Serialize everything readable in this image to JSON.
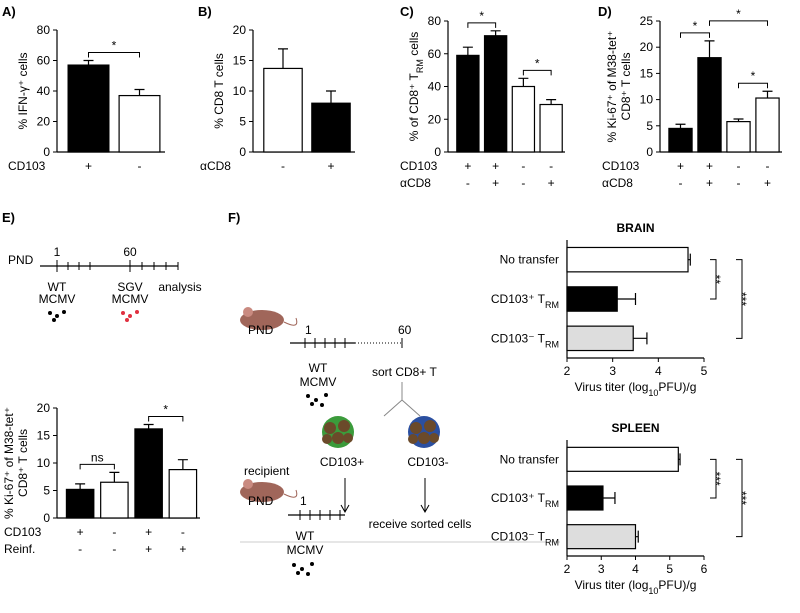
{
  "panel_labels": [
    "A)",
    "B)",
    "C)",
    "D)",
    "E)",
    "F)"
  ],
  "chart_data": [
    {
      "type": "bar",
      "ylabel": [
        [
          "% IFN-γ⁺ cells"
        ]
      ],
      "ylim": [
        0,
        80
      ],
      "yticks": [
        0,
        20,
        40,
        60,
        80
      ],
      "category_rows": [
        {
          "name": "CD103",
          "labels": [
            "+",
            "-"
          ]
        }
      ],
      "values": [
        57,
        37
      ],
      "errors": [
        3,
        4
      ],
      "colors": [
        "#000000",
        "#ffffff"
      ],
      "significance": [
        {
          "from": 0,
          "to": 1,
          "label": "*"
        }
      ]
    },
    {
      "type": "bar",
      "ylabel": [
        [
          "% CD8 T cells"
        ]
      ],
      "ylim": [
        0,
        20
      ],
      "yticks": [
        0,
        5,
        10,
        15,
        20
      ],
      "category_rows": [
        {
          "name": "αCD8",
          "labels": [
            "-",
            "+"
          ]
        }
      ],
      "values": [
        13.7,
        8
      ],
      "errors": [
        3.2,
        2
      ],
      "colors": [
        "#ffffff",
        "#000000"
      ],
      "significance": []
    },
    {
      "type": "bar",
      "ylabel": [
        [
          "% of CD8⁺ T",
          {
            "sub": "RM"
          },
          " cells"
        ]
      ],
      "ylim": [
        0,
        80
      ],
      "yticks": [
        0,
        20,
        40,
        60,
        80
      ],
      "category_rows": [
        {
          "name": "CD103",
          "labels": [
            "+",
            "+",
            "-",
            "-"
          ]
        },
        {
          "name": "αCD8",
          "labels": [
            "-",
            "+",
            "-",
            "+"
          ]
        }
      ],
      "values": [
        59,
        71,
        40,
        29
      ],
      "errors": [
        5,
        3,
        5,
        3
      ],
      "colors": [
        "#000000",
        "#000000",
        "#ffffff",
        "#ffffff"
      ],
      "significance": [
        {
          "from": 0,
          "to": 1,
          "label": "*"
        },
        {
          "from": 2,
          "to": 3,
          "label": "*"
        }
      ]
    },
    {
      "type": "bar",
      "ylabel": [
        [
          "% Ki-67⁺ of M38-tet⁺"
        ],
        [
          "CD8⁺ T cells"
        ]
      ],
      "ylim": [
        0,
        25
      ],
      "yticks": [
        0,
        5,
        10,
        15,
        20,
        25
      ],
      "category_rows": [
        {
          "name": "CD103",
          "labels": [
            "+",
            "+",
            "-",
            "-"
          ]
        },
        {
          "name": "αCD8",
          "labels": [
            "-",
            "+",
            "-",
            "+"
          ]
        }
      ],
      "values": [
        4.5,
        18,
        5.8,
        10.3
      ],
      "errors": [
        0.8,
        3.2,
        0.5,
        1.3
      ],
      "colors": [
        "#000000",
        "#000000",
        "#ffffff",
        "#ffffff"
      ],
      "significance": [
        {
          "from": 0,
          "to": 1,
          "label": "*"
        },
        {
          "from": 2,
          "to": 3,
          "label": "*"
        },
        {
          "from": 1,
          "to": 3,
          "label": "*"
        }
      ]
    },
    {
      "type": "bar",
      "ylabel": [
        [
          "% Ki-67⁺ of M38-tet⁺"
        ],
        [
          "CD8⁺ T cells"
        ]
      ],
      "ylim": [
        0,
        20
      ],
      "yticks": [
        0,
        5,
        10,
        15,
        20
      ],
      "category_rows": [
        {
          "name": "CD103",
          "labels": [
            "+",
            "-",
            "+",
            "-"
          ]
        },
        {
          "name": "Reinf.",
          "labels": [
            "-",
            "-",
            "+",
            "+"
          ]
        }
      ],
      "values": [
        5.2,
        6.5,
        16.2,
        8.8
      ],
      "errors": [
        1,
        1.8,
        0.8,
        1.8
      ],
      "colors": [
        "#000000",
        "#ffffff",
        "#000000",
        "#ffffff"
      ],
      "significance": [
        {
          "from": 0,
          "to": 1,
          "label": "ns"
        },
        {
          "from": 2,
          "to": 3,
          "label": "*"
        }
      ]
    },
    {
      "type": "hbar",
      "title": "BRAIN",
      "xlabel": [
        "Virus titer (log",
        {
          "sub": "10"
        },
        "PFU)/g"
      ],
      "xlim": [
        2,
        5
      ],
      "xticks": [
        2,
        3,
        4,
        5
      ],
      "categories": [
        [
          "No transfer"
        ],
        [
          "CD103⁺ T",
          {
            "sub": "RM"
          }
        ],
        [
          "CD103⁻ T",
          {
            "sub": "RM"
          }
        ]
      ],
      "values": [
        4.65,
        3.1,
        3.45
      ],
      "errors": [
        0.05,
        0.4,
        0.3
      ],
      "colors": [
        "#ffffff",
        "#000000",
        "#dddddd"
      ],
      "significance": [
        {
          "from": 0,
          "to": 1,
          "label": "**"
        },
        {
          "from": 0,
          "to": 2,
          "label": "***"
        }
      ]
    },
    {
      "type": "hbar",
      "title": "SPLEEN",
      "xlabel": [
        "Virus titer (log",
        {
          "sub": "10"
        },
        "PFU)/g"
      ],
      "xlim": [
        2,
        6
      ],
      "xticks": [
        2,
        3,
        4,
        5,
        6
      ],
      "categories": [
        [
          "No transfer"
        ],
        [
          "CD103⁺ T",
          {
            "sub": "RM"
          }
        ],
        [
          "CD103⁻ T",
          {
            "sub": "RM"
          }
        ]
      ],
      "values": [
        5.25,
        3.05,
        4.0
      ],
      "errors": [
        0.05,
        0.35,
        0.08
      ],
      "colors": [
        "#ffffff",
        "#000000",
        "#dddddd"
      ],
      "significance": [
        {
          "from": 0,
          "to": 1,
          "label": "***"
        },
        {
          "from": 0,
          "to": 2,
          "label": "***"
        }
      ]
    }
  ],
  "timeline_e": {
    "start": "PND",
    "day1": "1",
    "day60": "60",
    "wt": "WT",
    "mcmv1": "MCMV",
    "sgv": "SGV",
    "mcmv2": "MCMV",
    "end": "analysis"
  },
  "diagram_f": {
    "pnd1": "PND",
    "d1": "1",
    "d60": "60",
    "sort": "sort CD8+ T",
    "wt1": "WT",
    "mcmv1": "MCMV",
    "pos": "CD103+",
    "neg": "CD103-",
    "recipient": "recipient",
    "pnd2": "PND",
    "d1b": "1",
    "wt2": "WT",
    "mcmv2": "MCMV",
    "receive": "receive sorted cells"
  }
}
